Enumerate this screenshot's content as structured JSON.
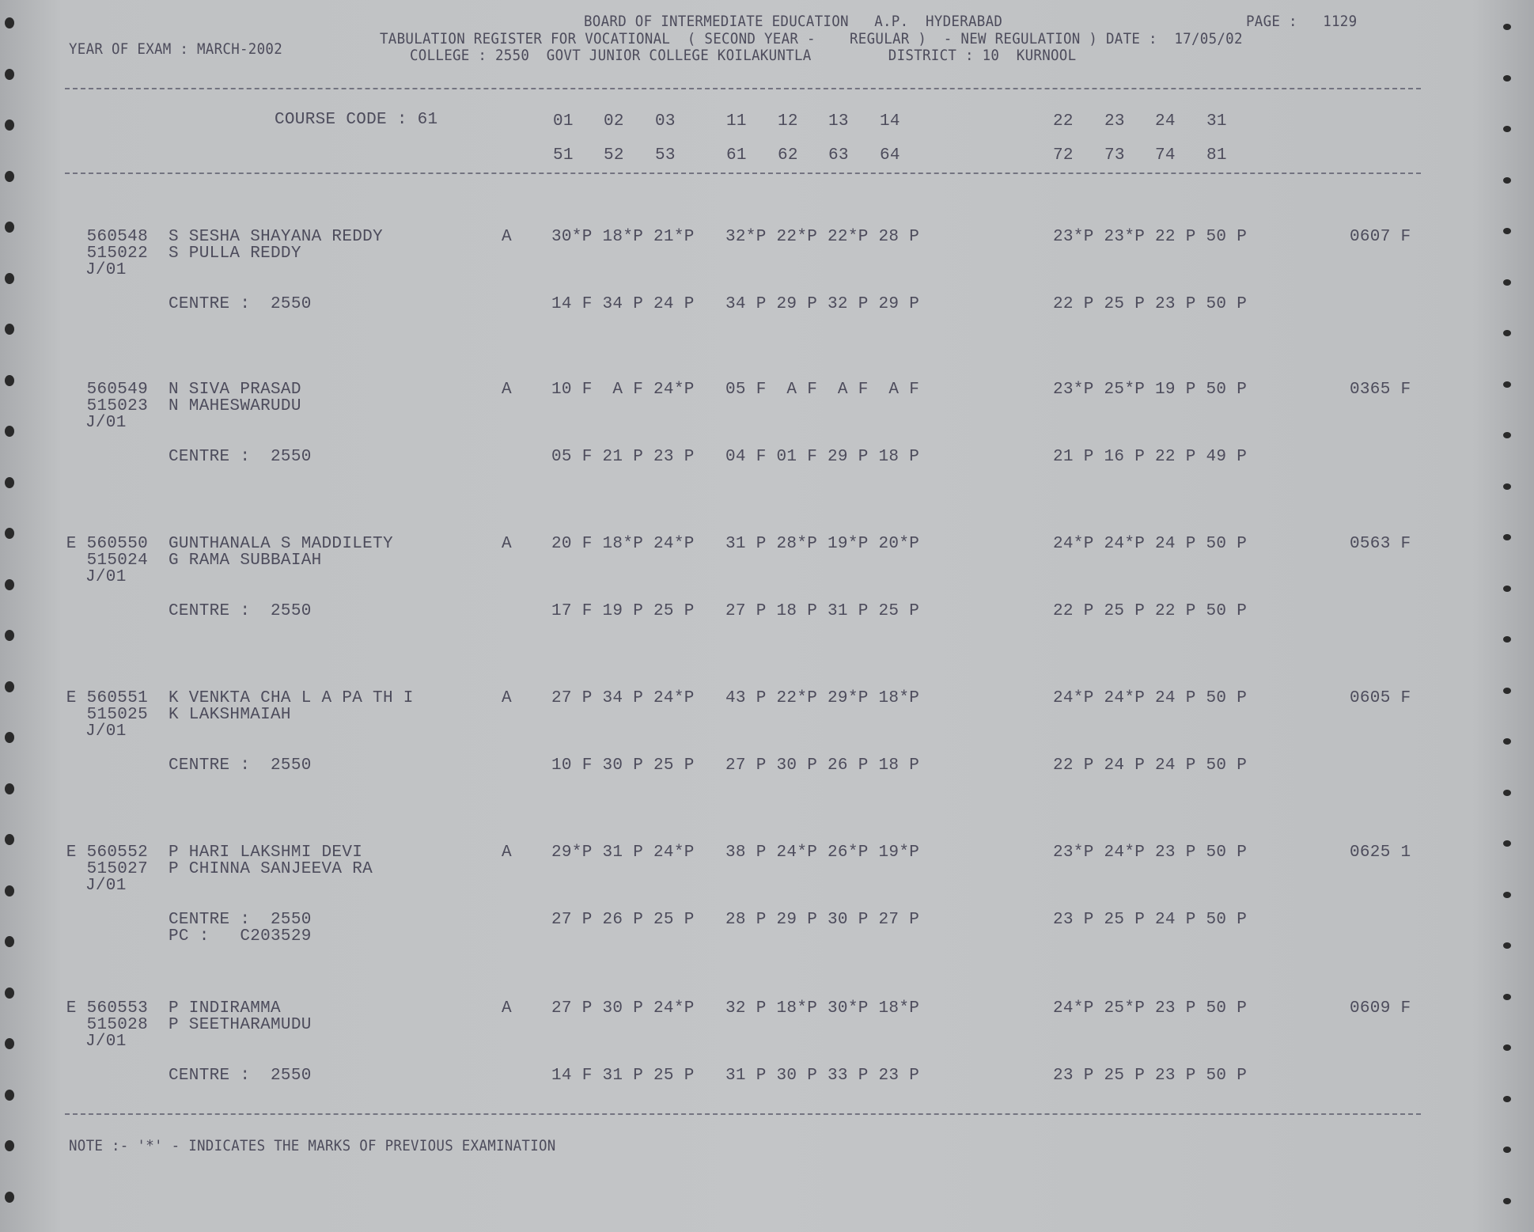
{
  "header": {
    "board": "BOARD OF INTERMEDIATE EDUCATION   A.P.  HYDERABAD",
    "register": "TABULATION REGISTER FOR VOCATIONAL  ( SECOND YEAR -    REGULAR )  - NEW REGULATION ) DATE :  17/05/02",
    "college": "COLLEGE : 2550  GOVT JUNIOR COLLEGE KOILAKUNTLA         DISTRICT : 10  KURNOOL",
    "year_of_exam": "YEAR OF EXAM : MARCH-2002",
    "page": "PAGE :   1129"
  },
  "columns": {
    "course_code": "COURSE CODE : 61",
    "row1": [
      "01",
      "02",
      "03",
      "11",
      "12",
      "13",
      "14",
      "22",
      "23",
      "24",
      "31"
    ],
    "row2": [
      "51",
      "52",
      "53",
      "61",
      "62",
      "63",
      "64",
      "72",
      "73",
      "74",
      "81"
    ]
  },
  "records": [
    {
      "reg": "560548",
      "roll": "515022",
      "code": "J/01",
      "name": "S SESHA SHAYANA REDDY",
      "father": "S PULLA REDDY",
      "status": "A",
      "marks": [
        "30*P 18*P 21*P",
        "32*P 22*P 22*P 28 P",
        "23*P 23*P 22 P 50 P"
      ],
      "total": "0607 F",
      "centre": "CENTRE :  2550",
      "marks2": [
        "14 F 34 P 24 P",
        "34 P 29 P 32 P 29 P",
        "22 P 25 P 23 P 50 P"
      ],
      "pc": ""
    },
    {
      "reg": "560549",
      "roll": "515023",
      "code": "J/01",
      "name": "N SIVA PRASAD",
      "father": "N MAHESWARUDU",
      "status": "A",
      "marks": [
        "10 F  A F 24*P",
        "05 F  A F  A F  A F",
        "23*P 25*P 19 P 50 P"
      ],
      "total": "0365 F",
      "centre": "CENTRE :  2550",
      "marks2": [
        "05 F 21 P 23 P",
        "04 F 01 F 29 P 18 P",
        "21 P 16 P 22 P 49 P"
      ],
      "pc": ""
    },
    {
      "reg": "E 560550",
      "roll": "515024",
      "code": "J/01",
      "name": "GUNTHANALA S MADDILETY",
      "father": "G RAMA SUBBAIAH",
      "status": "A",
      "marks": [
        "20 F 18*P 24*P",
        "31 P 28*P 19*P 20*P",
        "24*P 24*P 24 P 50 P"
      ],
      "total": "0563 F",
      "centre": "CENTRE :  2550",
      "marks2": [
        "17 F 19 P 25 P",
        "27 P 18 P 31 P 25 P",
        "22 P 25 P 22 P 50 P"
      ],
      "pc": ""
    },
    {
      "reg": "E 560551",
      "roll": "515025",
      "code": "J/01",
      "name": "K VENKTA CHA L A PA TH I",
      "father": "K LAKSHMAIAH",
      "status": "A",
      "marks": [
        "27 P 34 P 24*P",
        "43 P 22*P 29*P 18*P",
        "24*P 24*P 24 P 50 P"
      ],
      "total": "0605 F",
      "centre": "CENTRE :  2550",
      "marks2": [
        "10 F 30 P 25 P",
        "27 P 30 P 26 P 18 P",
        "22 P 24 P 24 P 50 P"
      ],
      "pc": ""
    },
    {
      "reg": "E 560552",
      "roll": "515027",
      "code": "J/01",
      "name": "P HARI LAKSHMI DEVI",
      "father": "P CHINNA SANJEEVA RA",
      "status": "A",
      "marks": [
        "29*P 31 P 24*P",
        "38 P 24*P 26*P 19*P",
        "23*P 24*P 23 P 50 P"
      ],
      "total": "0625 1",
      "centre": "CENTRE :  2550",
      "marks2": [
        "27 P 26 P 25 P",
        "28 P 29 P 30 P 27 P",
        "23 P 25 P 24 P 50 P"
      ],
      "pc": "PC :   C203529"
    },
    {
      "reg": "E 560553",
      "roll": "515028",
      "code": "J/01",
      "name": "P INDIRAMMA",
      "father": "P SEETHARAMUDU",
      "status": "A",
      "marks": [
        "27 P 30 P 24*P",
        "32 P 18*P 30*P 18*P",
        "24*P 25*P 23 P 50 P"
      ],
      "total": "0609 F",
      "centre": "CENTRE :  2550",
      "marks2": [
        "14 F 31 P 25 P",
        "31 P 30 P 33 P 23 P",
        "23 P 25 P 23 P 50 P"
      ],
      "pc": ""
    }
  ],
  "note": "NOTE :- '*' - INDICATES THE MARKS OF PREVIOUS EXAMINATION",
  "colors": {
    "paper": "#c3c5c7",
    "ink": "#4d4c5c"
  }
}
